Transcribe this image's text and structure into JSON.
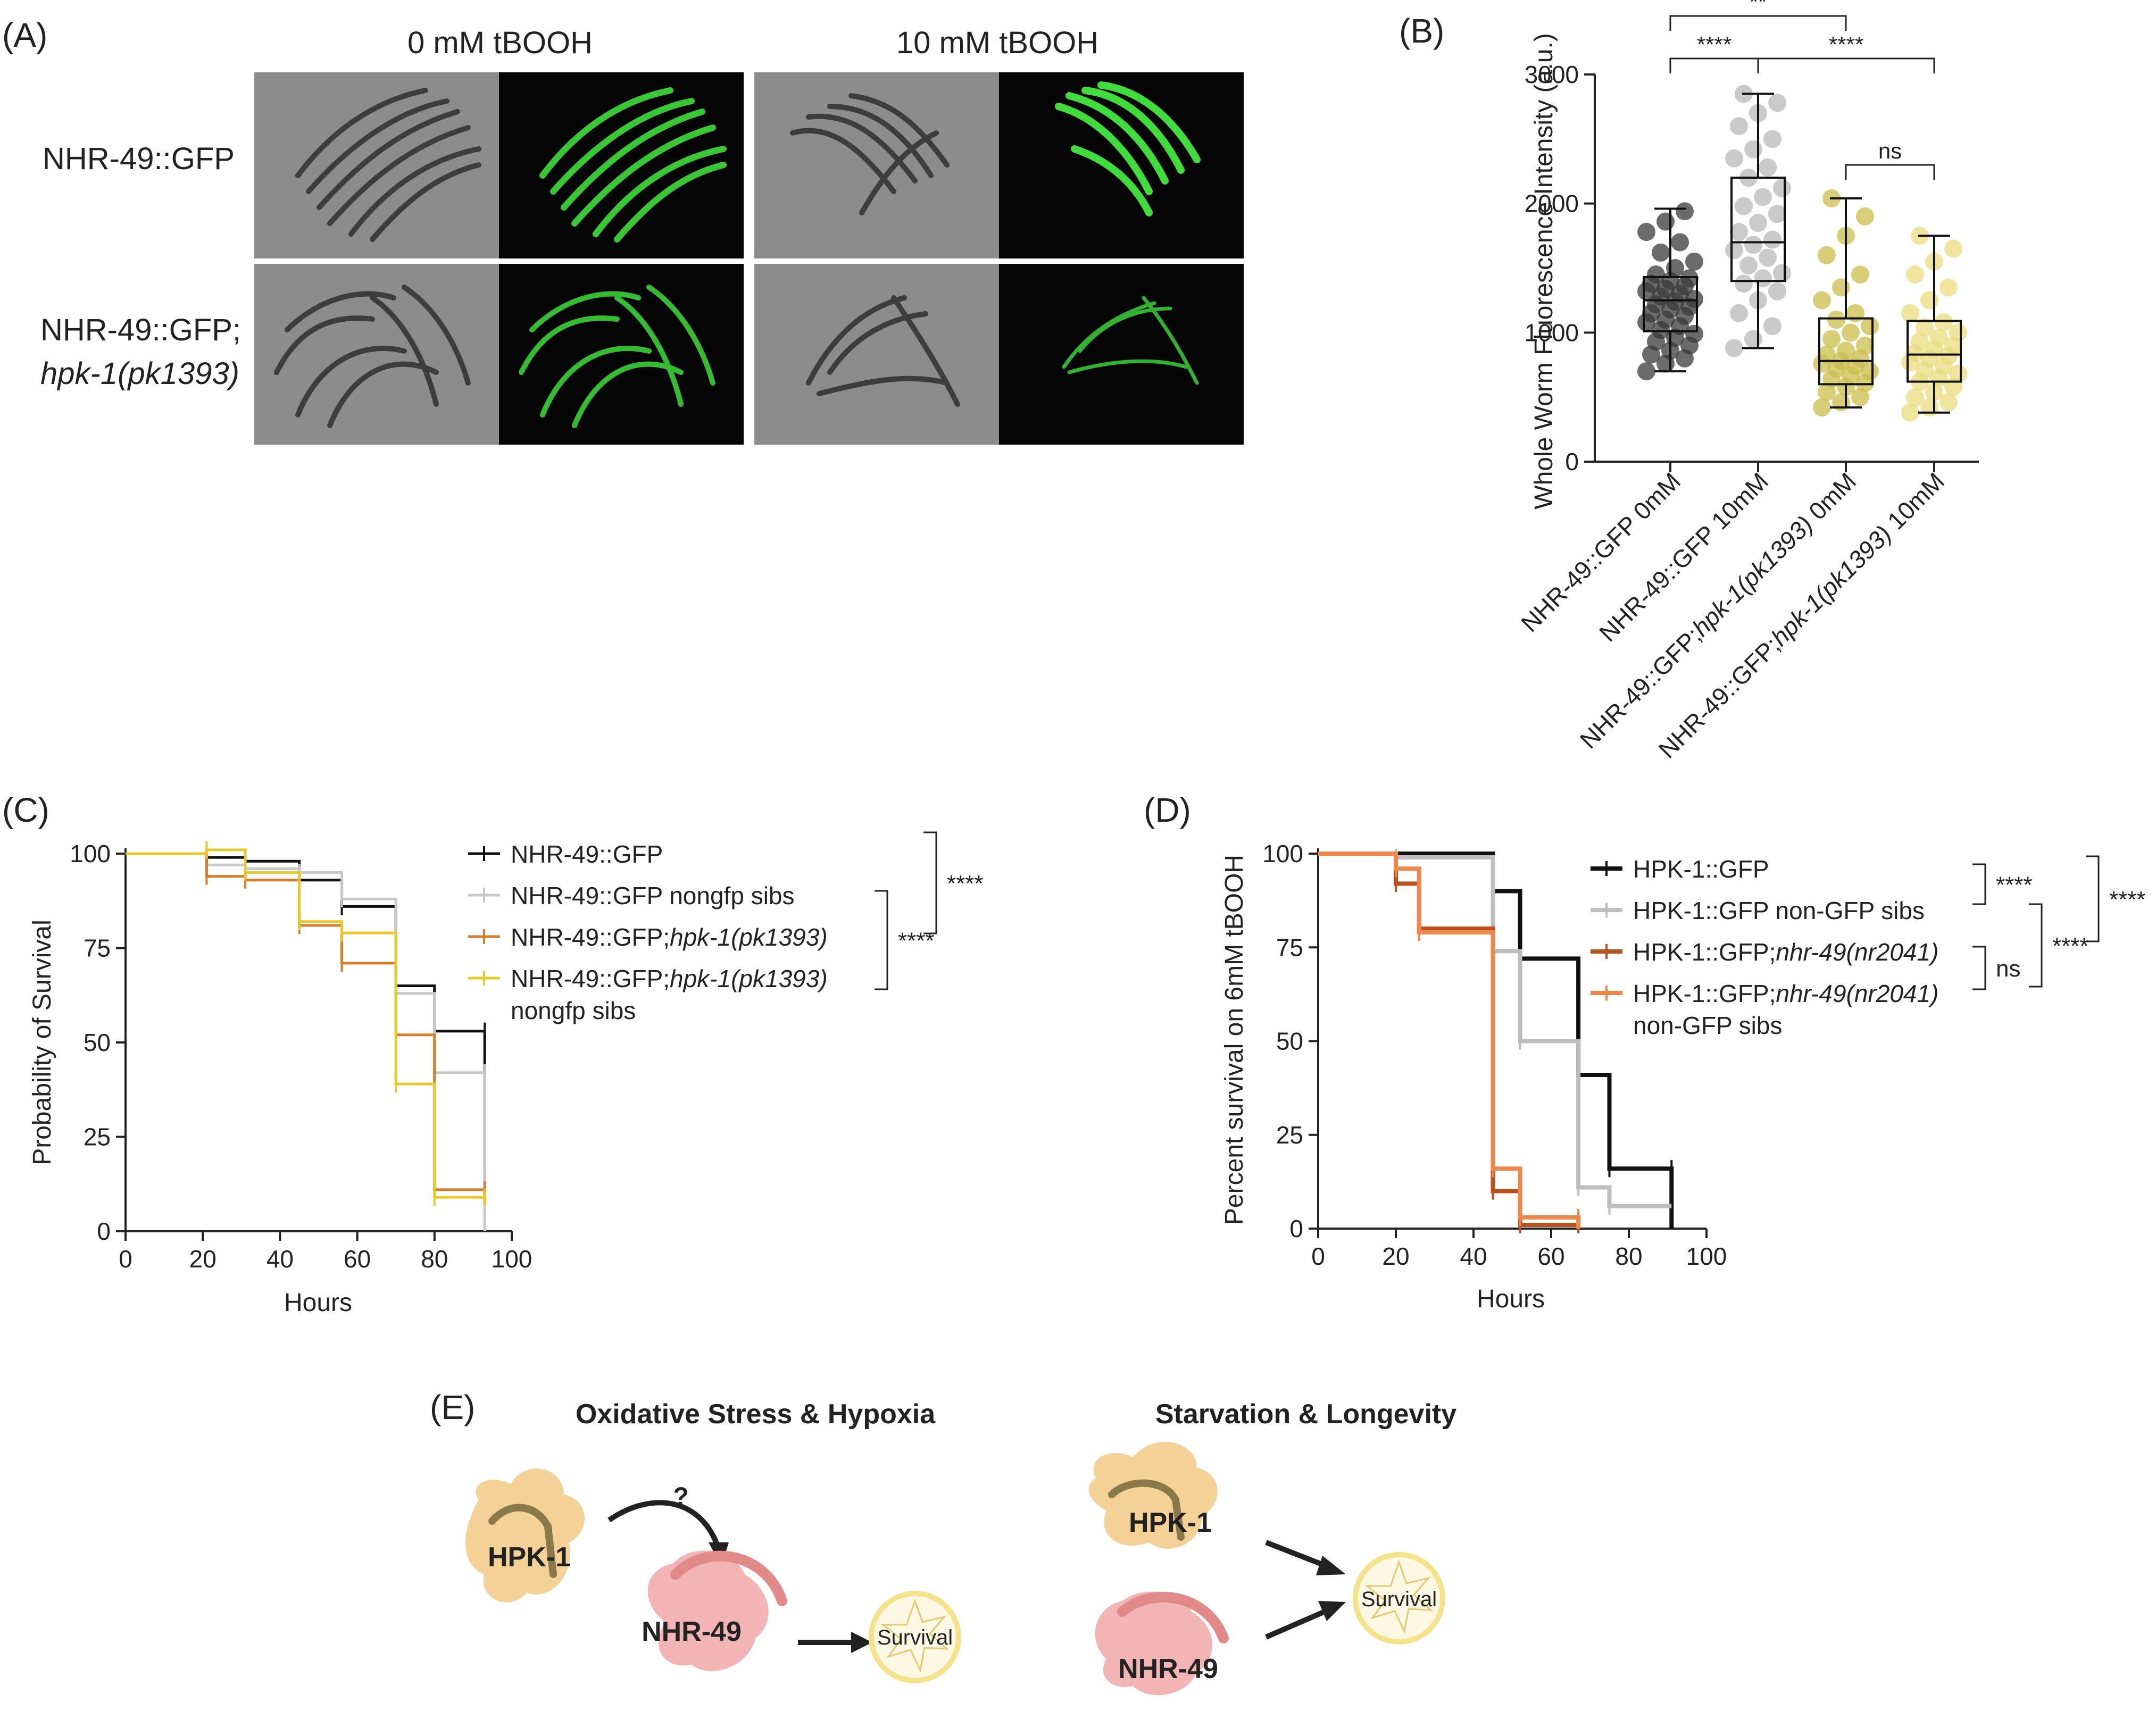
{
  "panels": {
    "A": "(A)",
    "B": "(B)",
    "C": "(C)",
    "D": "(D)",
    "E": "(E)"
  },
  "panel_a": {
    "col_headers": [
      "0 mM tBOOH",
      "10 mM tBOOH"
    ],
    "row_labels": [
      "NHR-49::GFP",
      "NHR-49::GFP;",
      "hpk-1(pk1393)"
    ],
    "colors": {
      "brightfield": "#8a8a8a",
      "fluorescence_bg": "#050505",
      "gfp": "#3fdc3c"
    }
  },
  "chart_data": [
    {
      "panel": "B",
      "type": "box",
      "ylabel": "Whole Worm Fluorescence Intensity (a.u.)",
      "ylim": [
        0,
        3000
      ],
      "yticks": [
        0,
        1000,
        2000,
        3000
      ],
      "categories": [
        "NHR-49::GFP 0mM",
        "NHR-49::GFP 10mM",
        "NHR-49::GFP;hpk-1(pk1393) 0mM",
        "NHR-49::GFP;hpk-1(pk1393) 10mM"
      ],
      "category_parts": [
        {
          "plain": "NHR-49::GFP 0mM",
          "italic": "",
          "tail": ""
        },
        {
          "plain": "NHR-49::GFP 10mM",
          "italic": "",
          "tail": ""
        },
        {
          "plain": "NHR-49::GFP;",
          "italic": "hpk-1(pk1393)",
          "tail": " 0mM"
        },
        {
          "plain": "NHR-49::GFP;",
          "italic": "hpk-1(pk1393)",
          "tail": " 10mM"
        }
      ],
      "boxes": [
        {
          "min": 700,
          "q1": 1010,
          "median": 1250,
          "q3": 1430,
          "max": 1960,
          "color": "#3a3a3a",
          "points": [
            700,
            760,
            800,
            830,
            860,
            900,
            930,
            960,
            990,
            1020,
            1050,
            1080,
            1100,
            1130,
            1150,
            1180,
            1200,
            1220,
            1240,
            1260,
            1280,
            1300,
            1320,
            1340,
            1360,
            1380,
            1400,
            1420,
            1450,
            1500,
            1550,
            1620,
            1700,
            1780,
            1860,
            1940
          ]
        },
        {
          "min": 880,
          "q1": 1400,
          "median": 1700,
          "q3": 2200,
          "max": 2850,
          "color": "#b8b8b8",
          "points": [
            880,
            950,
            1050,
            1150,
            1250,
            1320,
            1380,
            1420,
            1460,
            1520,
            1580,
            1640,
            1680,
            1720,
            1780,
            1850,
            1920,
            1980,
            2050,
            2120,
            2200,
            2280,
            2350,
            2420,
            2500,
            2600,
            2700,
            2780,
            2850
          ]
        },
        {
          "min": 420,
          "q1": 600,
          "median": 780,
          "q3": 1110,
          "max": 2040,
          "color": "#c9bd4a",
          "points": [
            420,
            460,
            500,
            540,
            580,
            610,
            640,
            670,
            700,
            720,
            740,
            760,
            780,
            800,
            830,
            860,
            900,
            950,
            1000,
            1050,
            1100,
            1150,
            1250,
            1350,
            1450,
            1600,
            1750,
            1900,
            2040
          ]
        },
        {
          "min": 380,
          "q1": 620,
          "median": 830,
          "q3": 1090,
          "max": 1750,
          "color": "#e9dc7e",
          "points": [
            380,
            420,
            460,
            500,
            540,
            580,
            620,
            650,
            680,
            710,
            740,
            770,
            800,
            820,
            840,
            870,
            900,
            930,
            960,
            1000,
            1040,
            1080,
            1150,
            1250,
            1350,
            1450,
            1550,
            1650,
            1750
          ]
        }
      ],
      "comparisons": [
        {
          "from": 1,
          "to": 3,
          "label": "**"
        },
        {
          "from": 1,
          "to": 2,
          "label": "****"
        },
        {
          "from": 2,
          "to": 4,
          "label": "****"
        },
        {
          "from": 3,
          "to": 4,
          "label": "ns"
        }
      ]
    },
    {
      "panel": "C",
      "type": "line",
      "xlabel": "Hours",
      "ylabel": "Probability of Survival",
      "xlim": [
        0,
        100
      ],
      "ylim": [
        0,
        100
      ],
      "xticks": [
        0,
        20,
        40,
        60,
        80,
        100
      ],
      "yticks": [
        0,
        25,
        50,
        75,
        100
      ],
      "series": [
        {
          "name": "NHR-49::GFP",
          "color": "#111111",
          "x": [
            0,
            21,
            31,
            45,
            56,
            70,
            80,
            93,
            93
          ],
          "y": [
            100,
            99,
            98,
            93,
            86,
            65,
            53,
            53,
            7
          ]
        },
        {
          "name": "NHR-49::GFP nongfp sibs",
          "color": "#c8c8c8",
          "x": [
            0,
            21,
            31,
            45,
            56,
            70,
            80,
            93,
            93
          ],
          "y": [
            100,
            97,
            96,
            95,
            88,
            63,
            42,
            42,
            0
          ]
        },
        {
          "name": "NHR-49::GFP;hpk-1(pk1393)",
          "color": "#d47d2b",
          "x": [
            0,
            21,
            31,
            45,
            56,
            70,
            80,
            93,
            93
          ],
          "y": [
            100,
            94,
            93,
            81,
            71,
            52,
            11,
            11,
            7
          ]
        },
        {
          "name": "NHR-49::GFP;hpk-1(pk1393) nongfp sibs",
          "color": "#e8c92a",
          "x": [
            0,
            21,
            31,
            45,
            56,
            70,
            80,
            93,
            93
          ],
          "y": [
            100,
            101,
            95,
            82,
            79,
            39,
            9,
            9,
            7
          ]
        }
      ],
      "legend": [
        {
          "plain": "NHR-49::GFP",
          "italic": "",
          "sub": ""
        },
        {
          "plain": "NHR-49::GFP nongfp sibs",
          "italic": "",
          "sub": ""
        },
        {
          "plain": "NHR-49::GFP;",
          "italic": "hpk-1(pk1393)",
          "sub": ""
        },
        {
          "plain": "NHR-49::GFP;",
          "italic": "hpk-1(pk1393)",
          "sub": "nongfp sibs"
        }
      ],
      "legend_position": "right",
      "significance": [
        {
          "between": [
            1,
            2
          ],
          "label": "****"
        },
        {
          "between": [
            2,
            4
          ],
          "label": "****"
        }
      ]
    },
    {
      "panel": "D",
      "type": "line",
      "xlabel": "Hours",
      "ylabel": "Percent survival on 6mM tBOOH",
      "xlim": [
        0,
        100
      ],
      "ylim": [
        0,
        100
      ],
      "xticks": [
        0,
        20,
        40,
        60,
        80,
        100
      ],
      "yticks": [
        0,
        25,
        50,
        75,
        100
      ],
      "series": [
        {
          "name": "HPK-1::GFP",
          "color": "#111111",
          "x": [
            0,
            45,
            52,
            67,
            75,
            91,
            91
          ],
          "y": [
            100,
            90,
            72,
            41,
            16,
            16,
            0
          ]
        },
        {
          "name": "HPK-1::GFP non-GFP sibs",
          "color": "#bdbdbd",
          "x": [
            0,
            20,
            45,
            52,
            67,
            75,
            91
          ],
          "y": [
            100,
            99,
            74,
            50,
            11,
            6,
            6
          ]
        },
        {
          "name": "HPK-1::GFP;nhr-49(nr2041)",
          "color": "#b8521f",
          "x": [
            0,
            20,
            26,
            45,
            52,
            67,
            67
          ],
          "y": [
            100,
            92,
            80,
            10,
            1,
            1,
            0
          ]
        },
        {
          "name": "HPK-1::GFP;nhr-49(nr2041) non-GFP sibs",
          "color": "#f0874a",
          "x": [
            0,
            20,
            26,
            45,
            52,
            67,
            67
          ],
          "y": [
            100,
            96,
            79,
            16,
            3,
            3,
            0
          ]
        }
      ],
      "legend": [
        {
          "plain": "HPK-1::GFP",
          "italic": "",
          "sub": ""
        },
        {
          "plain": "HPK-1::GFP non-GFP sibs",
          "italic": "",
          "sub": ""
        },
        {
          "plain": "HPK-1::GFP;",
          "italic": "nhr-49(nr2041)",
          "sub": ""
        },
        {
          "plain": "HPK-1::GFP;",
          "italic": "nhr-49(nr2041)",
          "sub": "non-GFP sibs"
        }
      ],
      "legend_position": "right",
      "significance": [
        {
          "between": [
            1,
            2
          ],
          "label": "****"
        },
        {
          "between": [
            3,
            4
          ],
          "label": "ns"
        },
        {
          "between": [
            2,
            3
          ],
          "label": "****"
        },
        {
          "between": [
            1,
            3
          ],
          "label": "****"
        }
      ]
    }
  ],
  "panel_e": {
    "left_title": "Oxidative Stress & Hypoxia",
    "right_title": "Starvation & Longevity",
    "hpk1": "HPK-1",
    "nhr49": "NHR-49",
    "question": "?",
    "survival": "Survival",
    "colors": {
      "hpk": "#f2cc8c",
      "nhr": "#f2b4b4",
      "survival": "#f5e38c",
      "arrow": "#222222"
    }
  }
}
